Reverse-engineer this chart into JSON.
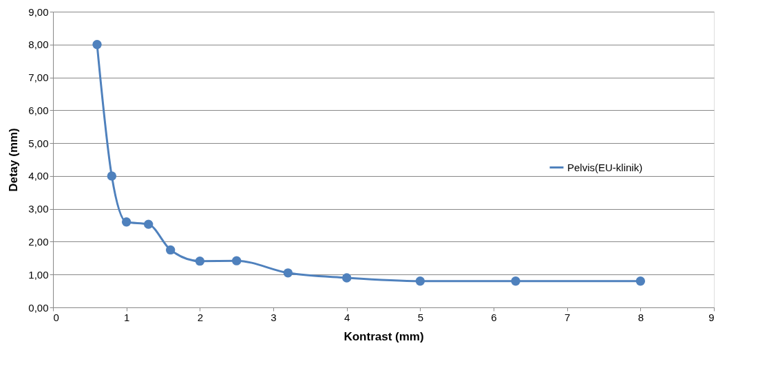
{
  "chart_data": {
    "type": "line",
    "xlabel": "Kontrast (mm)",
    "ylabel": "Detay (mm)",
    "x": [
      0.6,
      0.8,
      1.0,
      1.3,
      1.6,
      2.0,
      2.5,
      3.2,
      4.0,
      5.0,
      6.3,
      8.0
    ],
    "series": [
      {
        "name": "Pelvis(EU-klinik)",
        "color": "#4f81bd",
        "values": [
          8.0,
          4.0,
          2.6,
          2.53,
          1.75,
          1.41,
          1.42,
          1.05,
          0.9,
          0.8,
          0.8,
          0.8
        ]
      }
    ],
    "xlim": [
      0,
      9
    ],
    "xticks": [
      0,
      1,
      2,
      3,
      4,
      5,
      6,
      7,
      8,
      9
    ],
    "ylim": [
      0,
      9
    ],
    "yticks": [
      {
        "value": 0,
        "label": "0,00"
      },
      {
        "value": 1,
        "label": "1,00"
      },
      {
        "value": 2,
        "label": "2,00"
      },
      {
        "value": 3,
        "label": "3,00"
      },
      {
        "value": 4,
        "label": "4,00"
      },
      {
        "value": 5,
        "label": "5,00"
      },
      {
        "value": 6,
        "label": "6,00"
      },
      {
        "value": 7,
        "label": "7,00"
      },
      {
        "value": 8,
        "label": "8,00"
      },
      {
        "value": 9,
        "label": "9,00"
      }
    ],
    "grid": "y",
    "legend": "right",
    "marker": "circle",
    "line_style": "solid"
  }
}
